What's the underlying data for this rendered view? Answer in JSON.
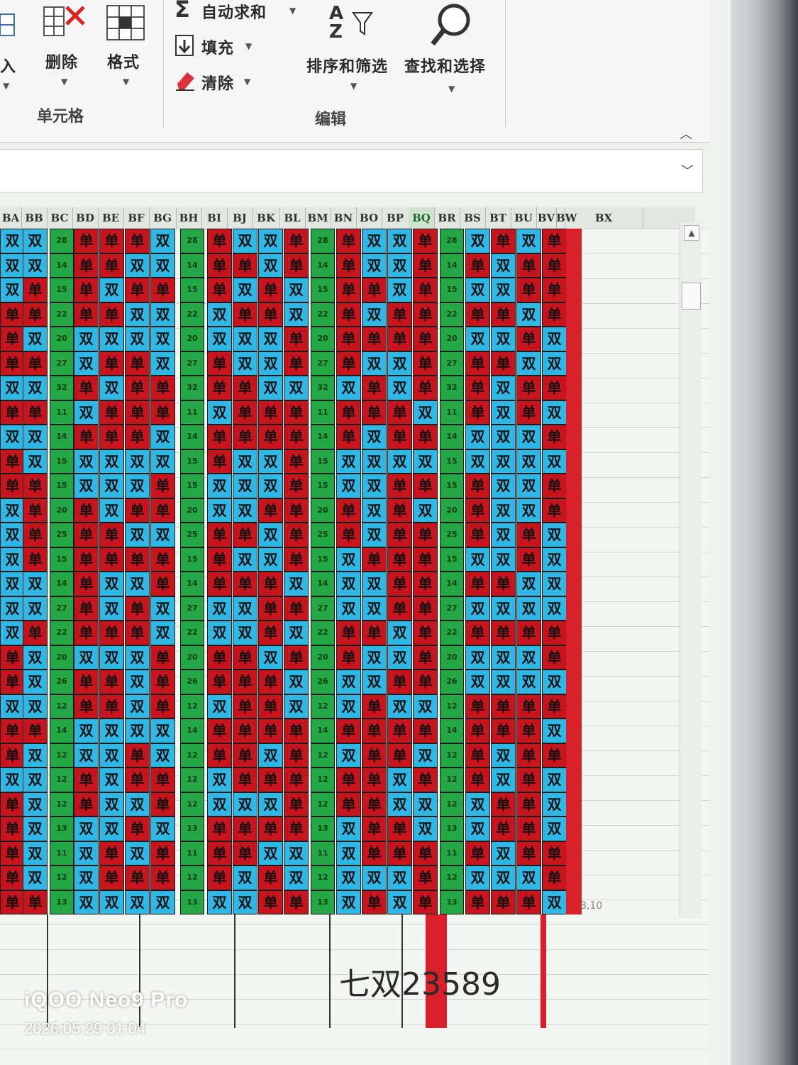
{
  "ribbon": {
    "insert_label": "入",
    "delete_label": "删除",
    "format_label": "格式",
    "cells_group_label": "单元格",
    "autosum_label": "自动求和",
    "fill_label": "填充",
    "clear_label": "清除",
    "sort_filter_label": "排序和筛选",
    "find_select_label": "查找和选择",
    "editing_group_label": "编辑",
    "sort_icon_text": "A Z",
    "autosum_icon_text": "Σ"
  },
  "columns": [
    "BA",
    "BB",
    "BC",
    "BD",
    "BE",
    "BF",
    "BG",
    "BH",
    "BI",
    "BJ",
    "BK",
    "BL",
    "BM",
    "BN",
    "BO",
    "BP",
    "BQ",
    "BR",
    "BS",
    "BT",
    "BU",
    "BV",
    "BW",
    "BX"
  ],
  "active_column": "BQ",
  "cell_symbols": {
    "odd": "单",
    "even": "双"
  },
  "group_markers": [
    "28",
    "14",
    "15",
    "22",
    "20",
    "27",
    "32",
    "11",
    "14",
    "15",
    "15",
    "20",
    "25",
    "15",
    "14",
    "27",
    "22",
    "20",
    "26",
    "12",
    "14",
    "12",
    "12",
    "12",
    "13",
    "11",
    "12",
    "13",
    "11"
  ],
  "note_text": "七双23589",
  "cell_ref_text": "8,10",
  "watermark": {
    "device": "iQOO Neo9 Pro",
    "datetime": "2026.05.29 01:04"
  },
  "colors": {
    "odd": "#c8141c",
    "even": "#2fb8e6",
    "marker": "#23a845"
  }
}
